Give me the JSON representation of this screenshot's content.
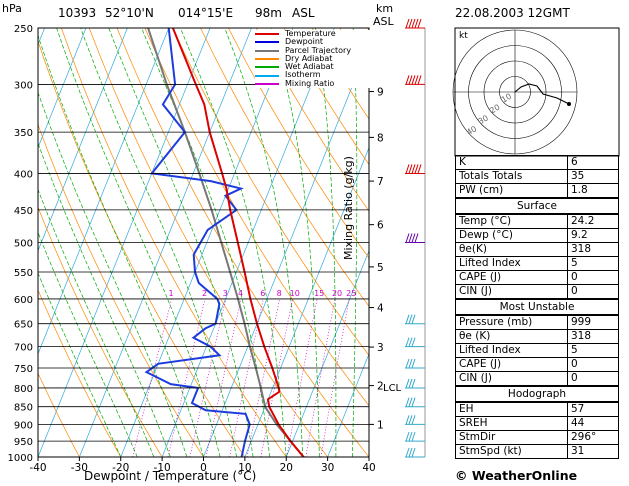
{
  "header": {
    "pressure_unit": "hPa",
    "station": "10393",
    "lat": "52°10'N",
    "lon": "014°15'E",
    "elevation": "98m",
    "asl_label": "ASL",
    "km_label": "km",
    "km_asl_label": "ASL",
    "datetime": "22.08.2003 12GMT"
  },
  "chart_data": {
    "type": "skew-t",
    "xlabel": "Dewpoint / Temperature (°C)",
    "ylabel": "Mixing Ratio (g/kg)",
    "x_ticks": [
      -40,
      -30,
      -20,
      -10,
      0,
      10,
      20,
      30,
      40
    ],
    "pressure_levels": [
      250,
      300,
      350,
      400,
      450,
      500,
      550,
      600,
      650,
      700,
      750,
      800,
      850,
      900,
      950,
      1000
    ],
    "km_ticks": [
      {
        "km": "1",
        "p": 900
      },
      {
        "km": "2",
        "p": 794
      },
      {
        "km": "3",
        "p": 701
      },
      {
        "km": "4",
        "p": 617
      },
      {
        "km": "5",
        "p": 541
      },
      {
        "km": "6",
        "p": 472
      },
      {
        "km": "7",
        "p": 410
      },
      {
        "km": "8",
        "p": 356
      },
      {
        "km": "9",
        "p": 307
      }
    ],
    "lcl_label": "LCL",
    "lcl_pressure": 797,
    "mixing_ratio_labels": [
      "1",
      "2",
      "3",
      "4",
      "6",
      "8",
      "10",
      "15",
      "20",
      "25"
    ],
    "legend": [
      {
        "name": "Temperature",
        "color": "#dd0000"
      },
      {
        "name": "Dewpoint",
        "color": "#0000dd"
      },
      {
        "name": "Parcel Trajectory",
        "color": "#777777"
      },
      {
        "name": "Dry Adiabat",
        "color": "#ff8800"
      },
      {
        "name": "Wet Adiabat",
        "color": "#00aa00"
      },
      {
        "name": "Isotherm",
        "color": "#00aaee"
      },
      {
        "name": "Mixing Ratio",
        "color": "#cc00cc"
      }
    ],
    "temperature": [
      [
        1000,
        24.2
      ],
      [
        950,
        19.5
      ],
      [
        900,
        15
      ],
      [
        850,
        11
      ],
      [
        830,
        10
      ],
      [
        810,
        12
      ],
      [
        800,
        11.5
      ],
      [
        750,
        8
      ],
      [
        700,
        4
      ],
      [
        650,
        0
      ],
      [
        600,
        -4
      ],
      [
        550,
        -8
      ],
      [
        500,
        -12.5
      ],
      [
        450,
        -17.5
      ],
      [
        420,
        -20.5
      ],
      [
        400,
        -23
      ],
      [
        350,
        -30
      ],
      [
        320,
        -34
      ],
      [
        300,
        -38
      ],
      [
        250,
        -49
      ]
    ],
    "dewpoint": [
      [
        1000,
        9.2
      ],
      [
        950,
        8.5
      ],
      [
        900,
        8
      ],
      [
        870,
        6
      ],
      [
        860,
        -4
      ],
      [
        840,
        -8
      ],
      [
        800,
        -8
      ],
      [
        790,
        -15
      ],
      [
        760,
        -22
      ],
      [
        740,
        -20
      ],
      [
        720,
        -6
      ],
      [
        700,
        -9
      ],
      [
        680,
        -14
      ],
      [
        660,
        -12
      ],
      [
        650,
        -10
      ],
      [
        610,
        -11
      ],
      [
        600,
        -12
      ],
      [
        570,
        -18
      ],
      [
        550,
        -20
      ],
      [
        520,
        -22
      ],
      [
        480,
        -21
      ],
      [
        450,
        -16
      ],
      [
        430,
        -20
      ],
      [
        420,
        -17
      ],
      [
        410,
        -25
      ],
      [
        400,
        -40
      ],
      [
        350,
        -36
      ],
      [
        320,
        -44
      ],
      [
        300,
        -43
      ],
      [
        250,
        -50
      ]
    ],
    "parcel": [
      [
        1000,
        24.2
      ],
      [
        950,
        19.5
      ],
      [
        900,
        14.5
      ],
      [
        850,
        10
      ],
      [
        797,
        7
      ],
      [
        750,
        4
      ],
      [
        700,
        0.5
      ],
      [
        650,
        -3
      ],
      [
        600,
        -7
      ],
      [
        550,
        -11.5
      ],
      [
        500,
        -16.5
      ],
      [
        450,
        -22
      ],
      [
        400,
        -28.5
      ],
      [
        350,
        -36
      ],
      [
        300,
        -45
      ],
      [
        250,
        -55
      ]
    ],
    "winds": [
      [
        1000,
        "calm"
      ],
      [
        950,
        "5"
      ],
      [
        900,
        "10"
      ],
      [
        850,
        "10"
      ],
      [
        800,
        "15"
      ],
      [
        750,
        "15"
      ],
      [
        700,
        "15"
      ],
      [
        650,
        "15"
      ],
      [
        500,
        "25"
      ],
      [
        400,
        "35"
      ],
      [
        300,
        "45"
      ],
      [
        250,
        "50"
      ]
    ]
  },
  "hodograph": {
    "unit": "kt",
    "ring_labels": [
      "10",
      "20",
      "30",
      "40"
    ]
  },
  "indices": [
    {
      "label": "K",
      "value": "6"
    },
    {
      "label": "Totals Totals",
      "value": "35"
    },
    {
      "label": "PW (cm)",
      "value": "1.8"
    }
  ],
  "surface": {
    "title": "Surface",
    "rows": [
      {
        "label": "Temp (°C)",
        "value": "24.2"
      },
      {
        "label": "Dewp (°C)",
        "value": "9.2"
      },
      {
        "label": "θe(K)",
        "value": "318"
      },
      {
        "label": "Lifted Index",
        "value": "5"
      },
      {
        "label": "CAPE (J)",
        "value": "0"
      },
      {
        "label": "CIN (J)",
        "value": "0"
      }
    ]
  },
  "most_unstable": {
    "title": "Most Unstable",
    "rows": [
      {
        "label": "Pressure (mb)",
        "value": "999"
      },
      {
        "label": "θe (K)",
        "value": "318"
      },
      {
        "label": "Lifted Index",
        "value": "5"
      },
      {
        "label": "CAPE (J)",
        "value": "0"
      },
      {
        "label": "CIN (J)",
        "value": "0"
      }
    ]
  },
  "hodograph_table": {
    "title": "Hodograph",
    "rows": [
      {
        "label": "EH",
        "value": "57"
      },
      {
        "label": "SREH",
        "value": "44"
      },
      {
        "label": "StmDir",
        "value": "296°"
      },
      {
        "label": "StmSpd (kt)",
        "value": "31"
      }
    ]
  },
  "footer": {
    "copyright": "© WeatherOnline"
  }
}
